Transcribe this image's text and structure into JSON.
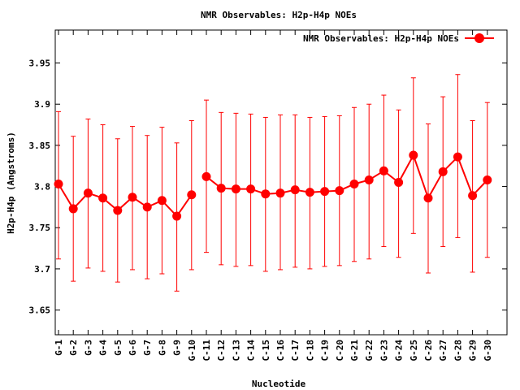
{
  "chart_data": {
    "type": "line",
    "title": "NMR Observables: H2p-H4p NOEs",
    "xlabel": "Nucleotide",
    "ylabel": "H2p-H4p (Angstroms)",
    "ylim": [
      3.62,
      3.99
    ],
    "yticks": [
      "3.65",
      "3.7",
      "3.75",
      "3.8",
      "3.85",
      "3.9",
      "3.95"
    ],
    "grid": false,
    "legend_position": "top-right",
    "categories": [
      "G-1",
      "G-2",
      "G-3",
      "G-4",
      "G-5",
      "G-6",
      "G-7",
      "G-8",
      "G-9",
      "G-10",
      "C-11",
      "C-12",
      "C-13",
      "C-14",
      "C-15",
      "C-16",
      "C-17",
      "C-18",
      "C-19",
      "C-20",
      "G-21",
      "G-22",
      "G-23",
      "G-24",
      "G-25",
      "C-26",
      "G-27",
      "G-28",
      "G-29",
      "G-30"
    ],
    "series": [
      {
        "name": "NMR Observables: H2p-H4p NOEs",
        "color": "#ff0000",
        "segments": [
          [
            0,
            9
          ],
          [
            10,
            29
          ]
        ],
        "values": [
          3.803,
          3.773,
          3.792,
          3.786,
          3.771,
          3.787,
          3.775,
          3.783,
          3.764,
          3.79,
          3.812,
          3.798,
          3.797,
          3.797,
          3.791,
          3.792,
          3.796,
          3.793,
          3.794,
          3.795,
          3.803,
          3.808,
          3.819,
          3.805,
          3.838,
          3.786,
          3.818,
          3.836,
          3.789,
          3.808
        ],
        "err_low": [
          3.712,
          3.685,
          3.701,
          3.697,
          3.684,
          3.699,
          3.688,
          3.694,
          3.673,
          3.699,
          3.72,
          3.705,
          3.703,
          3.704,
          3.697,
          3.699,
          3.702,
          3.7,
          3.703,
          3.704,
          3.709,
          3.712,
          3.727,
          3.714,
          3.743,
          3.695,
          3.727,
          3.738,
          3.696,
          3.714
        ],
        "err_high": [
          3.891,
          3.861,
          3.882,
          3.875,
          3.858,
          3.873,
          3.862,
          3.872,
          3.853,
          3.88,
          3.905,
          3.89,
          3.889,
          3.888,
          3.884,
          3.887,
          3.887,
          3.884,
          3.885,
          3.886,
          3.896,
          3.9,
          3.911,
          3.893,
          3.932,
          3.876,
          3.909,
          3.936,
          3.88,
          3.902
        ]
      }
    ]
  }
}
